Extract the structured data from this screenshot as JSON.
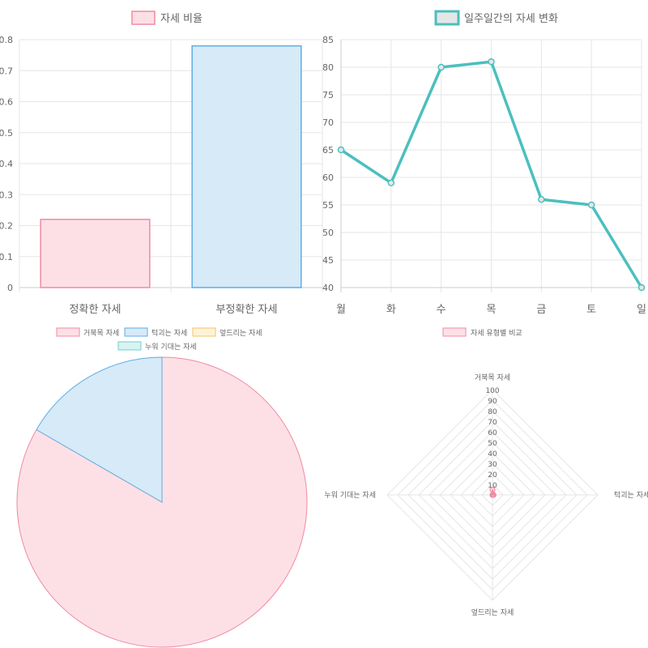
{
  "charts": [
    {
      "type": "bar",
      "legend": {
        "label": "자세 비율",
        "fill": "#fde0e6",
        "stroke": "#f08aa2"
      },
      "categories": [
        "정확한 자세",
        "부정확한 자세"
      ],
      "values": [
        0.22,
        0.78
      ],
      "ylim": [
        0,
        0.8
      ],
      "yticks": [
        "0",
        "0.1",
        "0.2",
        "0.3",
        "0.4",
        "0.5",
        "0.6",
        "0.7",
        "0.8"
      ],
      "colors": [
        {
          "fill": "#fde0e6",
          "stroke": "#f08aa2"
        },
        {
          "fill": "#d6eaf8",
          "stroke": "#5dade2"
        }
      ]
    },
    {
      "type": "line",
      "legend": {
        "label": "일주일간의 자세 변화",
        "fill": "#e6e6e6",
        "stroke": "#4bbfbf"
      },
      "categories": [
        "월",
        "화",
        "수",
        "목",
        "금",
        "토",
        "일"
      ],
      "values": [
        65,
        59,
        80,
        81,
        56,
        55,
        40
      ],
      "ylim": [
        40,
        85
      ],
      "yticks": [
        "40",
        "45",
        "50",
        "55",
        "60",
        "65",
        "70",
        "75",
        "80",
        "85"
      ],
      "color": "#4bbfbf"
    },
    {
      "type": "pie",
      "legend": [
        {
          "label": "거북목 자세",
          "fill": "#fde0e6",
          "stroke": "#f08aa2"
        },
        {
          "label": "턱괴는 자세",
          "fill": "#d6eaf8",
          "stroke": "#5dade2"
        },
        {
          "label": "엎드리는 자세",
          "fill": "#fff3d6",
          "stroke": "#f5c06a"
        },
        {
          "label": "누워 기대는 자세",
          "fill": "#d9f2f2",
          "stroke": "#6fcfcf"
        }
      ],
      "values": [
        5,
        1,
        0,
        0
      ]
    },
    {
      "type": "radar",
      "legend": {
        "label": "자세 유형별 비교",
        "fill": "#fde0e6",
        "stroke": "#f08aa2"
      },
      "axes": [
        "거북목 자세",
        "턱괴는 자세",
        "엎드리는 자세",
        "누워 기대는 자세"
      ],
      "values": [
        5,
        1,
        0,
        0
      ],
      "ticks": [
        "10",
        "20",
        "30",
        "40",
        "50",
        "60",
        "70",
        "80",
        "90",
        "100"
      ],
      "rmax": 100,
      "color": "#f08aa2"
    }
  ]
}
